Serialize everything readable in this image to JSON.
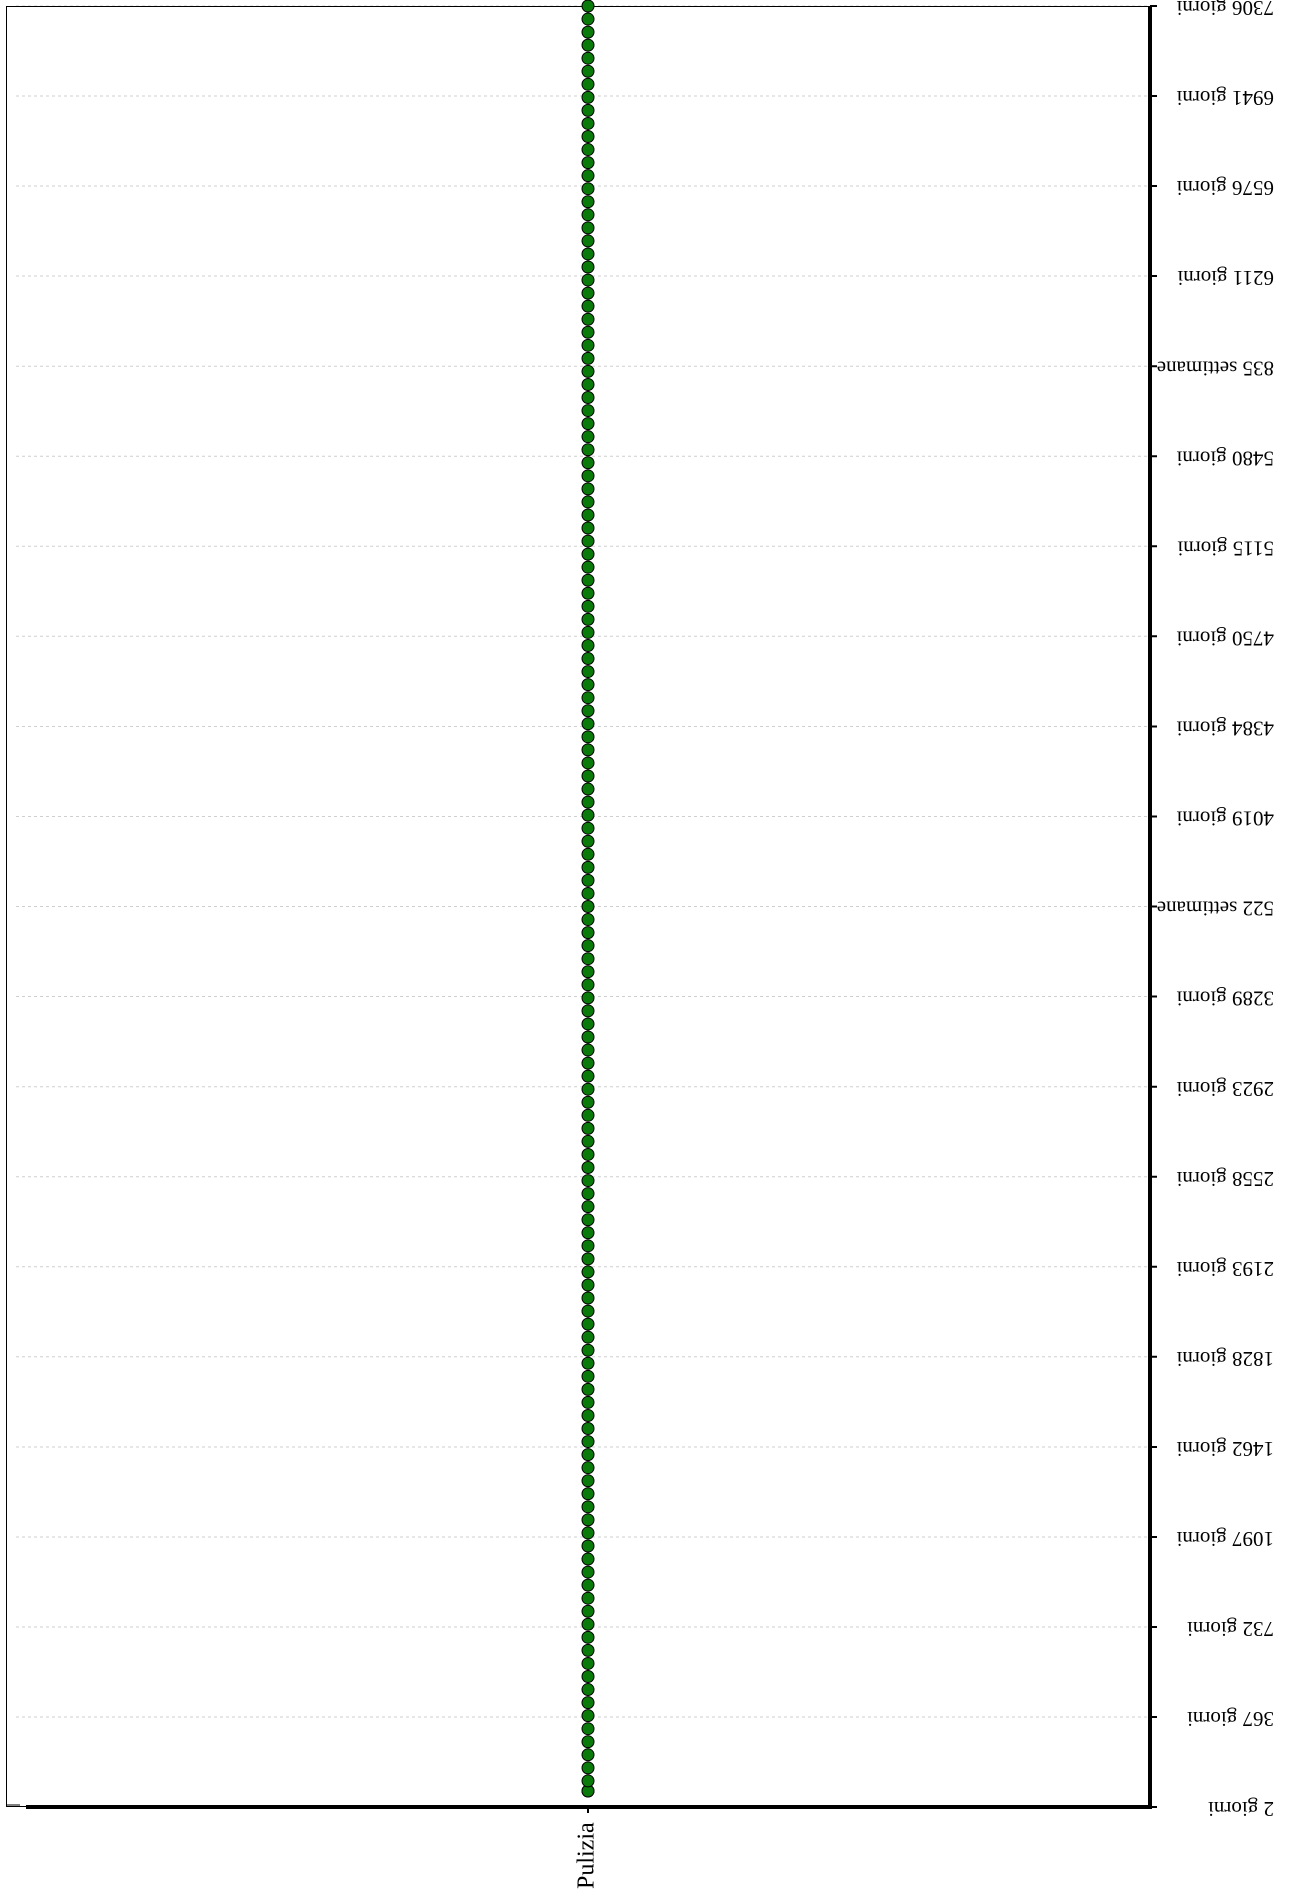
{
  "chart_data": {
    "type": "scatter",
    "orientation": "rotated-180",
    "categories": [
      "Pulizia"
    ],
    "y_ticks": [
      {
        "value": 2,
        "label": "2 giorni"
      },
      {
        "value": 367,
        "label": "367 giorni"
      },
      {
        "value": 732,
        "label": "732 giorni"
      },
      {
        "value": 1097,
        "label": "1097 giorni"
      },
      {
        "value": 1462,
        "label": "1462 giorni"
      },
      {
        "value": 1828,
        "label": "1828 giorni"
      },
      {
        "value": 2193,
        "label": "2193 giorni"
      },
      {
        "value": 2558,
        "label": "2558 giorni"
      },
      {
        "value": 2923,
        "label": "2923 giorni"
      },
      {
        "value": 3289,
        "label": "3289 giorni"
      },
      {
        "value": 3654,
        "label": "522 settimane"
      },
      {
        "value": 4019,
        "label": "4019 giorni"
      },
      {
        "value": 4384,
        "label": "4384 giorni"
      },
      {
        "value": 4750,
        "label": "4750 giorni"
      },
      {
        "value": 5115,
        "label": "5115 giorni"
      },
      {
        "value": 5480,
        "label": "5480 giorni"
      },
      {
        "value": 5845,
        "label": "835 settimane"
      },
      {
        "value": 6211,
        "label": "6211 giorni"
      },
      {
        "value": 6576,
        "label": "6576 giorni"
      },
      {
        "value": 6941,
        "label": "6941 giorni"
      },
      {
        "value": 7306,
        "label": "7306 giorni"
      }
    ],
    "ylim": [
      2,
      7306
    ],
    "y_unit": "giorni",
    "series": [
      {
        "category": "Pulizia",
        "y_start": 2,
        "y_end": 7306,
        "point_count": 139,
        "color": "#0a7a0a"
      }
    ],
    "grid": true,
    "legend": "none"
  }
}
